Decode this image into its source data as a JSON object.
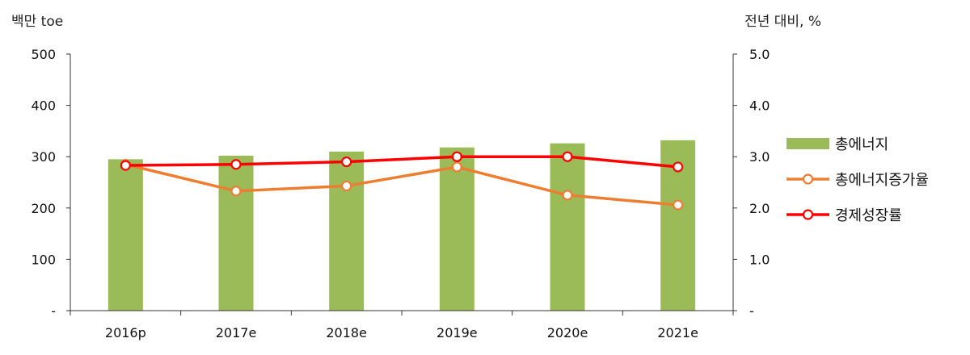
{
  "chart_data": {
    "type": "bar+line",
    "categories": [
      "2016p",
      "2017e",
      "2018e",
      "2019e",
      "2020e",
      "2021e"
    ],
    "left_axis": {
      "unit_label": "백만 toe",
      "ylim": [
        0,
        500
      ],
      "ticks": [
        "-",
        "100",
        "200",
        "300",
        "400",
        "500"
      ]
    },
    "right_axis": {
      "unit_label": "전년 대비, %",
      "ylim": [
        0,
        5
      ],
      "ticks": [
        "-",
        "1.0",
        "2.0",
        "3.0",
        "4.0",
        "5.0"
      ]
    },
    "series": [
      {
        "name": "총에너지",
        "type": "bar",
        "axis": "left",
        "color": "#9bbb59",
        "values": [
          295,
          302,
          310,
          318,
          326,
          332
        ]
      },
      {
        "name": "총에너지증가율",
        "type": "line",
        "axis": "right",
        "color": "#ed7d31",
        "values": [
          2.85,
          2.33,
          2.43,
          2.8,
          2.25,
          2.06
        ]
      },
      {
        "name": "경제성장률",
        "type": "line",
        "axis": "right",
        "color": "#ff0000",
        "values": [
          2.83,
          2.85,
          2.9,
          3.0,
          3.0,
          2.8
        ]
      }
    ],
    "grid": false,
    "legend_position": "right"
  }
}
